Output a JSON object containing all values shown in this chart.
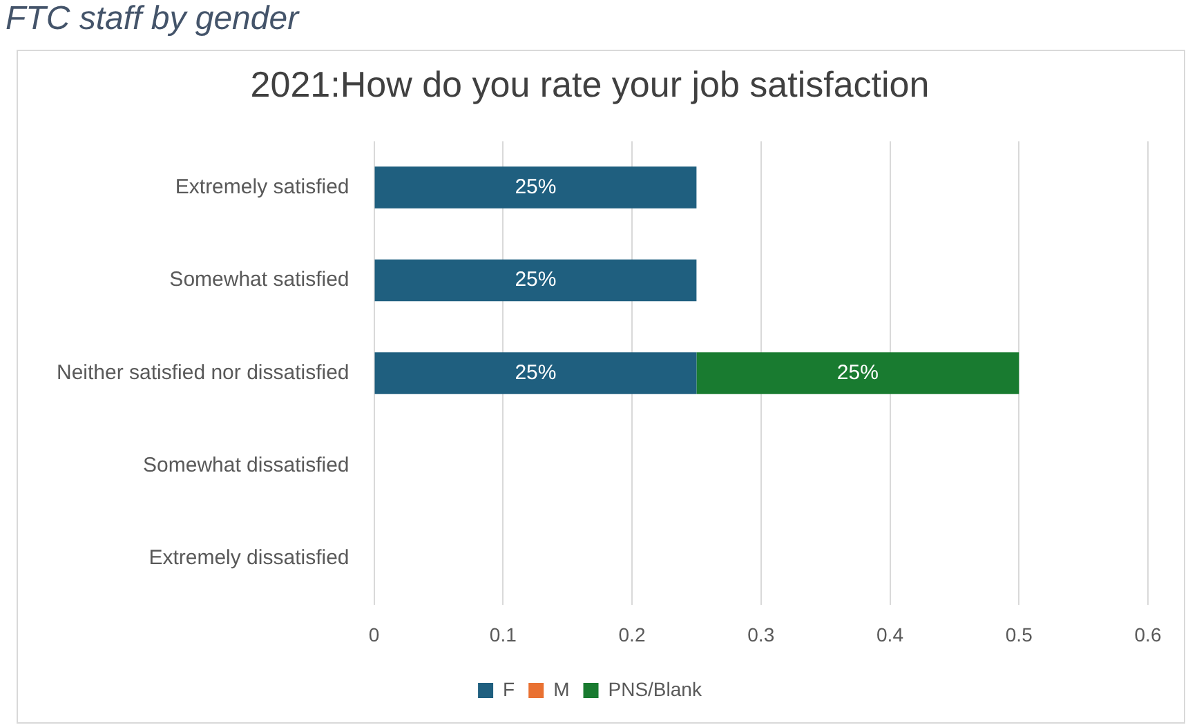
{
  "chart_data": {
    "type": "bar",
    "orientation": "horizontal",
    "stacked": true,
    "title": "2021:How do you rate your job satisfaction",
    "annotations": [
      "FTC staff by gender"
    ],
    "categories": [
      "Extremely satisfied",
      "Somewhat satisfied",
      "Neither satisfied nor dissatisfied",
      "Somewhat dissatisfied",
      "Extremely dissatisfied"
    ],
    "series": [
      {
        "name": "F",
        "color": "#1f5f7f",
        "values": [
          0.25,
          0.25,
          0.25,
          null,
          null
        ],
        "value_labels": [
          "25%",
          "25%",
          "25%",
          null,
          null
        ]
      },
      {
        "name": "M",
        "color": "#e97132",
        "values": [
          null,
          null,
          null,
          null,
          null
        ],
        "value_labels": [
          null,
          null,
          null,
          null,
          null
        ]
      },
      {
        "name": "PNS/Blank",
        "color": "#197b30",
        "values": [
          null,
          null,
          0.25,
          null,
          null
        ],
        "value_labels": [
          null,
          null,
          "25%",
          null,
          null
        ]
      }
    ],
    "xlim": [
      0,
      0.6
    ],
    "xticks": [
      0,
      0.1,
      0.2,
      0.3,
      0.4,
      0.5,
      0.6
    ],
    "grid": "x",
    "legend": "bottom"
  }
}
